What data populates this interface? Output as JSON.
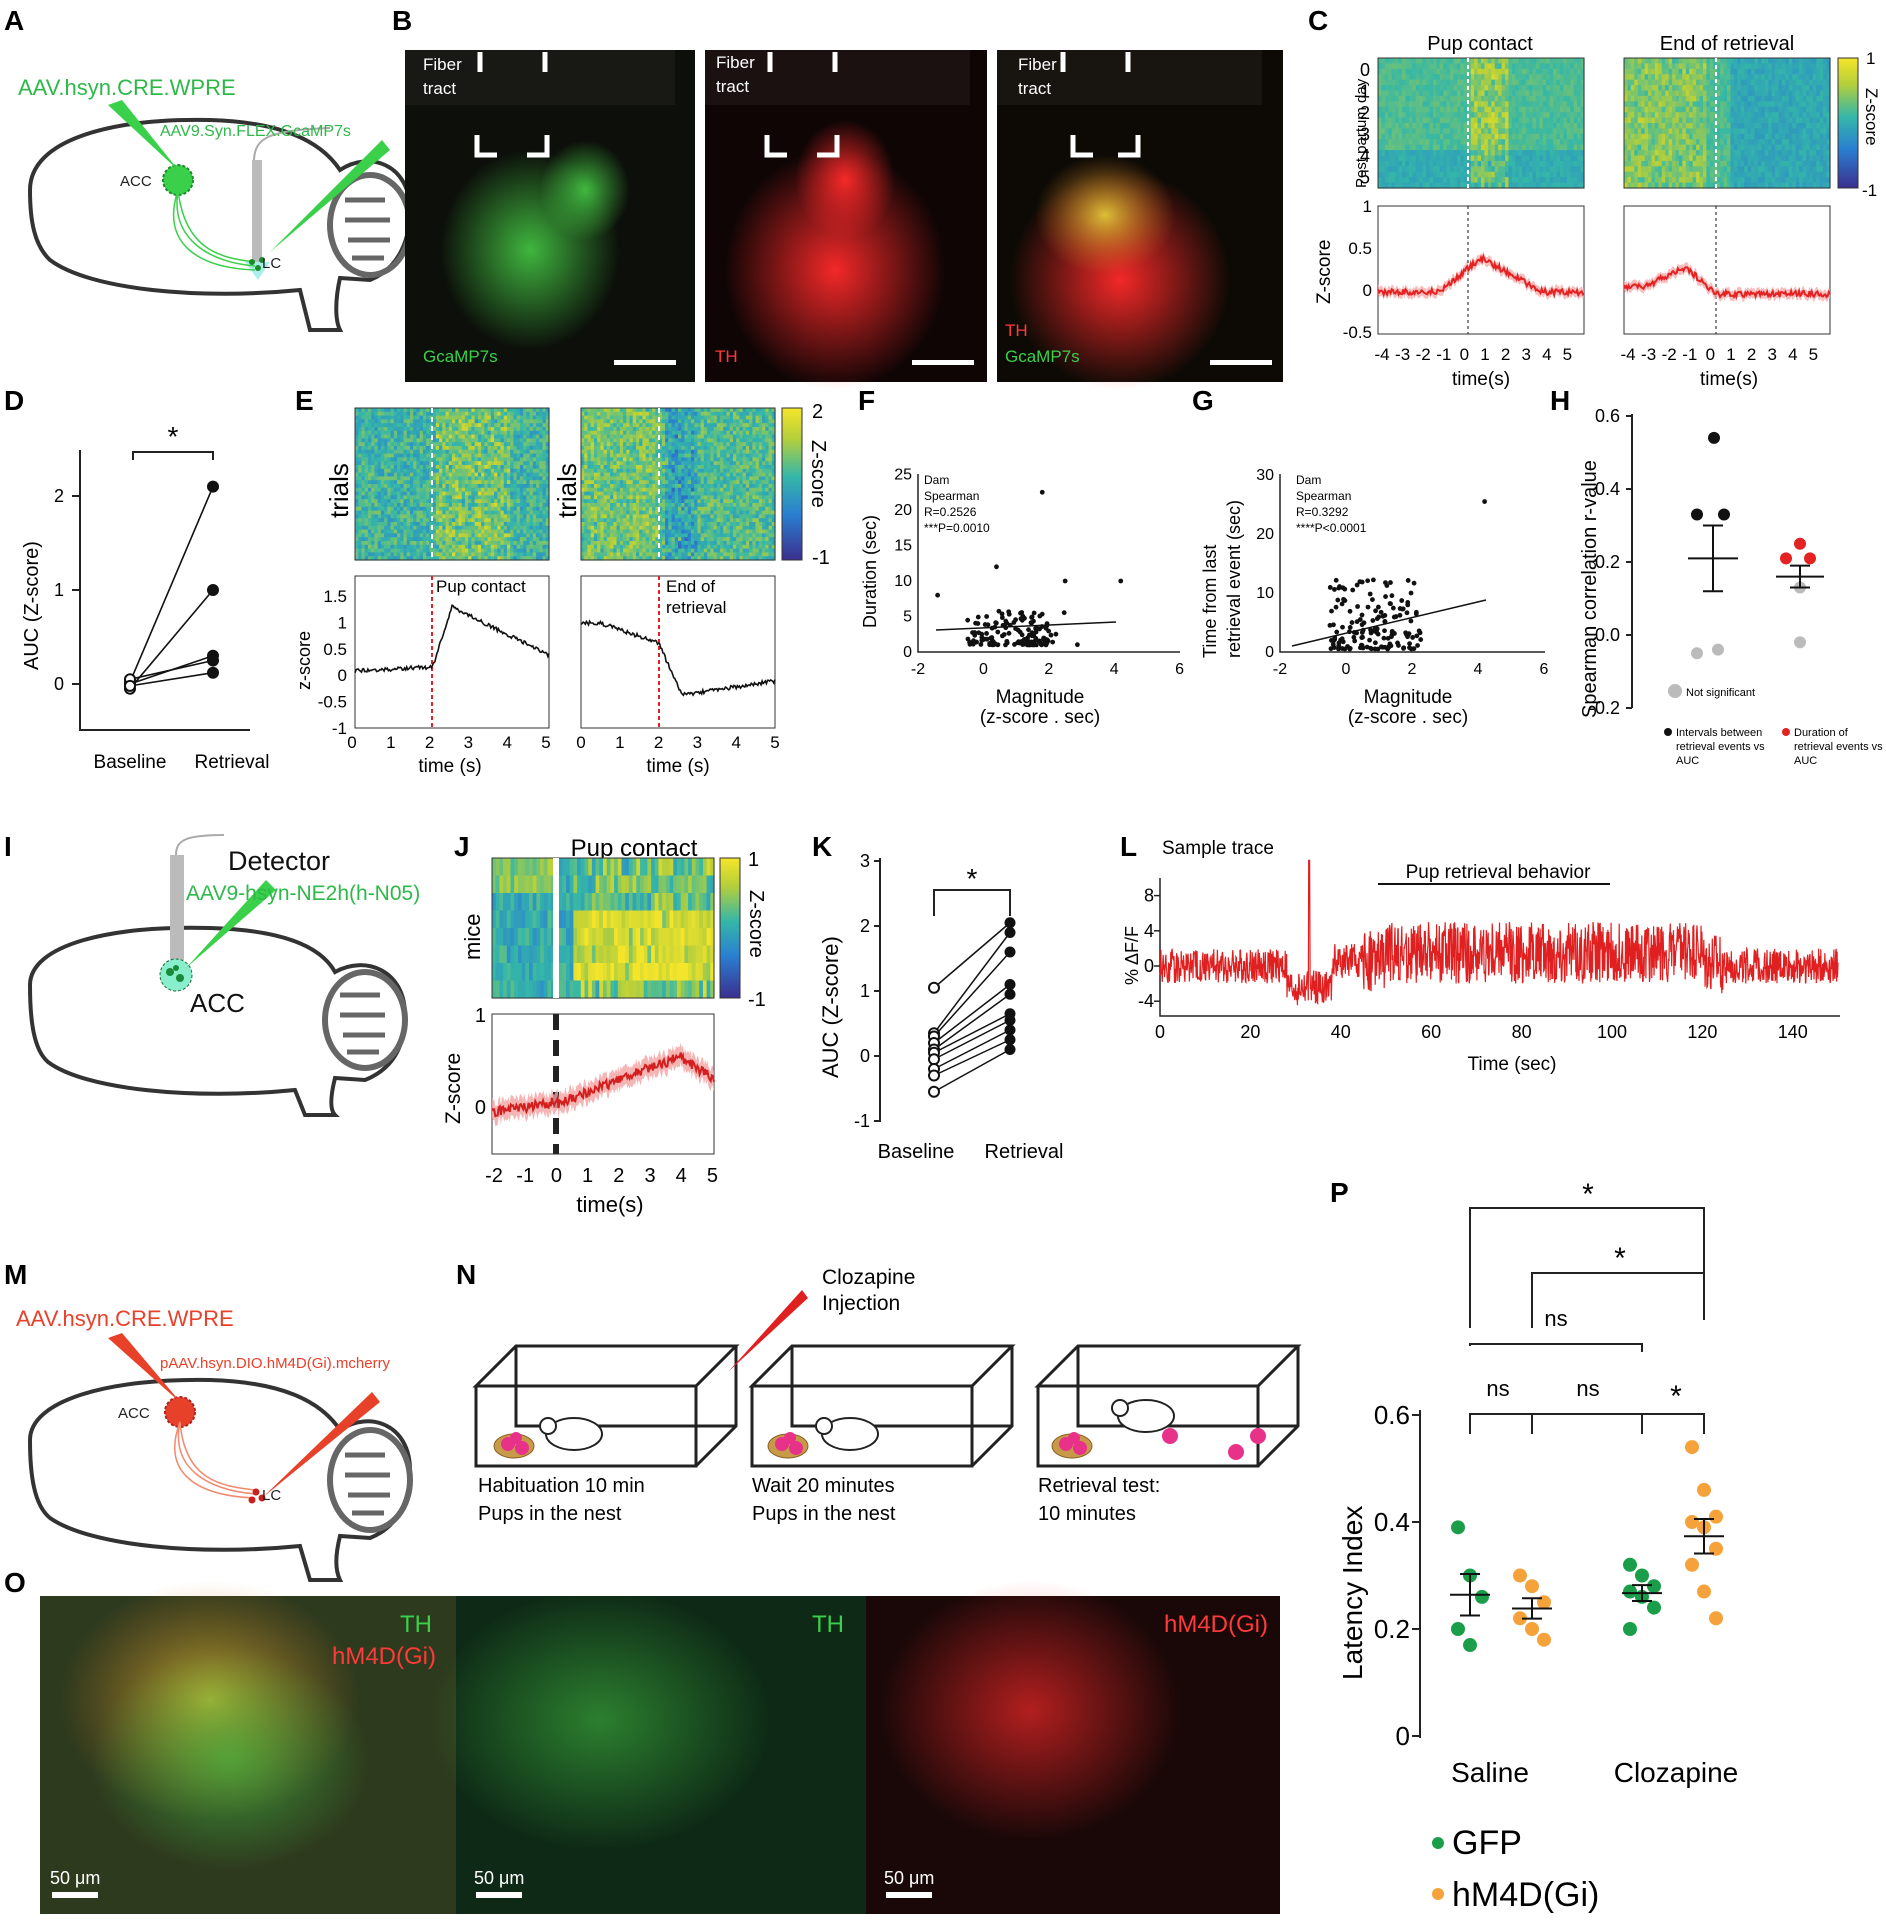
{
  "panels": {
    "A": {
      "label": "A",
      "virus1": "AAV.hsyn.CRE.WPRE",
      "virus2": "AAV9.Syn.FLEX.GcaMP7s",
      "region1": "ACC",
      "region2": "LC"
    },
    "B": {
      "label": "B",
      "fiber": "Fiber",
      "tract": "tract",
      "ch1": "GcaMP7s",
      "ch2": "TH",
      "ch3a": "TH",
      "ch3b": "GcaMP7s"
    },
    "C": {
      "label": "C",
      "title1": "Pup contact",
      "title2": "End of retrieval",
      "ylab_heat": "Post partum day",
      "days": [
        "0",
        "1",
        "2",
        "3",
        "4",
        "5"
      ],
      "cbar_label": "Z-score",
      "cbar_max": "1",
      "cbar_min": "-1",
      "ylab_trace": "Z-score",
      "yticks": [
        "1",
        "0.5",
        "0",
        "-0.5"
      ],
      "xticks": [
        "-4",
        "-3",
        "-2",
        "-1",
        "0",
        "1",
        "2",
        "3",
        "4",
        "5"
      ],
      "xlab": "time(s)"
    },
    "D": {
      "label": "D",
      "star": "*",
      "ylab": "AUC (Z-score)",
      "yticks": [
        "2",
        "1",
        "0"
      ],
      "xcats": [
        "Baseline",
        "Retrieval"
      ]
    },
    "E": {
      "label": "E",
      "ylab_heat": "trials",
      "cbar_max": "2",
      "cbar_min": "-1",
      "cbar_label": "Z-score",
      "ylab": "z-score",
      "yticks": [
        "1.5",
        "1",
        "0.5",
        "0",
        "-0.5",
        "-1"
      ],
      "xticks": [
        "0",
        "1",
        "2",
        "3",
        "4",
        "5"
      ],
      "xlab": "time (s)",
      "ann1": "Pup contact",
      "ann2a": "End of",
      "ann2b": "retrieval"
    },
    "F": {
      "label": "F",
      "ylab": "Duration (sec)",
      "xlab1": "Magnitude",
      "xlab2": "(z-score . sec)",
      "stats": [
        "Dam",
        "Spearman",
        "R=0.2526",
        "***P=0.0010"
      ],
      "yticks": [
        "25",
        "20",
        "15",
        "10",
        "5",
        "0"
      ],
      "xticks": [
        "-2",
        "0",
        "2",
        "4",
        "6"
      ]
    },
    "G": {
      "label": "G",
      "ylab1": "Time from last",
      "ylab2": "retrieval event (sec)",
      "xlab1": "Magnitude",
      "xlab2": "(z-score . sec)",
      "stats": [
        "Dam",
        "Spearman",
        "R=0.3292",
        "****P<0.0001"
      ],
      "yticks": [
        "30",
        "20",
        "10",
        "0"
      ],
      "xticks": [
        "-2",
        "0",
        "2",
        "4",
        "6"
      ]
    },
    "H": {
      "label": "H",
      "ylab": "Spearman correlation r-value",
      "yticks": [
        "0.6",
        "0.4",
        "0.2",
        "0.0",
        "-0.2"
      ],
      "ns_label": "Not significant",
      "leg1a": "Intervals between",
      "leg1b": "retrieval events vs",
      "leg1c": "AUC",
      "leg2a": "Duration of",
      "leg2b": "retrieval events vs",
      "leg2c": "AUC"
    },
    "I": {
      "label": "I",
      "detector": "Detector",
      "virus": "AAV9-hsyn-NE2h(h-N05)",
      "region": "ACC"
    },
    "J": {
      "label": "J",
      "title": "Pup contact",
      "ylab_heat": "mice",
      "cbar_max": "1",
      "cbar_min": "-1",
      "cbar_label": "Z-score",
      "ylab": "Z-score",
      "yticks": [
        "1",
        "0"
      ],
      "xticks": [
        "-2",
        "-1",
        "0",
        "1",
        "2",
        "3",
        "4",
        "5"
      ],
      "xlab": "time(s)"
    },
    "K": {
      "label": "K",
      "star": "*",
      "ylab": "AUC (Z-score)",
      "yticks": [
        "3",
        "2",
        "1",
        "0",
        "-1"
      ],
      "xcats": [
        "Baseline",
        "Retrieval"
      ]
    },
    "L": {
      "label": "L",
      "title": "Sample trace",
      "behavior": "Pup retrieval behavior",
      "ylab": "% ΔF/F",
      "yticks": [
        "8",
        "4",
        "0",
        "-4"
      ],
      "xticks": [
        "0",
        "20",
        "40",
        "60",
        "80",
        "100",
        "120",
        "140"
      ],
      "xlab": "Time (sec)"
    },
    "M": {
      "label": "M",
      "virus1": "AAV.hsyn.CRE.WPRE",
      "virus2": "pAAV.hsyn.DIO.hM4D(Gi).mcherry",
      "region1": "ACC",
      "region2": "LC"
    },
    "N": {
      "label": "N",
      "inj1": "Clozapine",
      "inj2": "Injection",
      "step1a": "Habituation 10 min",
      "step1b": "Pups in the nest",
      "step2a": "Wait 20 minutes",
      "step2b": "Pups in the nest",
      "step3a": "Retrieval test:",
      "step3b": "10 minutes"
    },
    "O": {
      "label": "O",
      "p1a": "TH",
      "p1b": "hM4D(Gi)",
      "p2": "TH",
      "p3": "hM4D(Gi)",
      "scale": "50 μm"
    },
    "P": {
      "label": "P",
      "ylab": "Latency Index",
      "yticks": [
        "0.6",
        "0.4",
        "0.2",
        "0"
      ],
      "xcats": [
        "Saline",
        "Clozapine"
      ],
      "star": "*",
      "ns": "ns",
      "leg_gfp": "GFP",
      "leg_hm4d": "hM4D(Gi)"
    }
  },
  "colors": {
    "green": "#2fb84a",
    "red": "#e32222",
    "orange": "#f5a23a",
    "dark_green": "#1a9e4a"
  },
  "chart_data": [
    {
      "type": "line",
      "panel": "D",
      "categories": [
        "Baseline",
        "Retrieval"
      ],
      "series": [
        {
          "values": [
            0.02,
            2.1
          ]
        },
        {
          "values": [
            -0.05,
            1.0
          ]
        },
        {
          "values": [
            0.0,
            0.3
          ]
        },
        {
          "values": [
            0.05,
            0.25
          ]
        },
        {
          "values": [
            -0.02,
            0.12
          ]
        }
      ],
      "ylim": [
        -0.4,
        2.5
      ]
    },
    {
      "type": "scatter",
      "panel": "H",
      "ylim": [
        -0.2,
        0.6
      ],
      "series": [
        {
          "name": "Intervals between retrieval events vs AUC",
          "values": [
            0.54,
            0.33,
            0.33,
            -0.05,
            -0.05
          ],
          "mean": 0.21
        },
        {
          "name": "Duration of retrieval events vs AUC",
          "values": [
            0.25,
            0.2,
            0.2,
            0.12,
            -0.02
          ],
          "mean": 0.16
        }
      ]
    },
    {
      "type": "line",
      "panel": "K",
      "categories": [
        "Baseline",
        "Retrieval"
      ],
      "series": [
        {
          "values": [
            1.05,
            2.05
          ]
        },
        {
          "values": [
            0.35,
            1.9
          ]
        },
        {
          "values": [
            0.3,
            1.6
          ]
        },
        {
          "values": [
            0.2,
            1.1
          ]
        },
        {
          "values": [
            0.1,
            0.95
          ]
        },
        {
          "values": [
            0.05,
            0.65
          ]
        },
        {
          "values": [
            -0.05,
            0.55
          ]
        },
        {
          "values": [
            -0.2,
            0.4
          ]
        },
        {
          "values": [
            -0.3,
            0.25
          ]
        },
        {
          "values": [
            -0.55,
            0.1
          ]
        }
      ],
      "ylim": [
        -1,
        3
      ]
    },
    {
      "type": "scatter",
      "panel": "P",
      "categories": [
        "Saline",
        "Clozapine"
      ],
      "ylim": [
        0,
        0.6
      ],
      "series": [
        {
          "name": "GFP",
          "saline": [
            0.39,
            0.3,
            0.26,
            0.2,
            0.17
          ],
          "clozapine": [
            0.32,
            0.3,
            0.28,
            0.27,
            0.26,
            0.24,
            0.2
          ]
        },
        {
          "name": "hM4D(Gi)",
          "saline": [
            0.3,
            0.28,
            0.25,
            0.22,
            0.2,
            0.18
          ],
          "clozapine": [
            0.54,
            0.46,
            0.41,
            0.4,
            0.39,
            0.35,
            0.32,
            0.27,
            0.22
          ]
        }
      ]
    }
  ]
}
